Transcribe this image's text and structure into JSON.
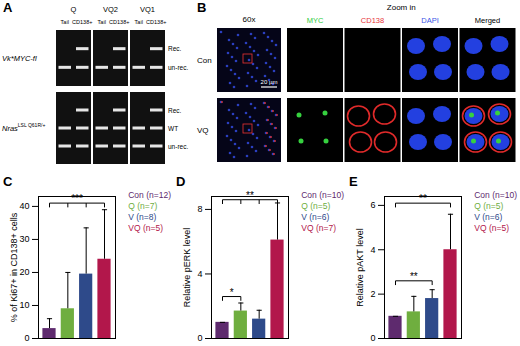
{
  "panel_A": {
    "label": "A",
    "groups": [
      "Q",
      "VQ2",
      "VQ1"
    ],
    "lanes": [
      "Tail",
      "CD138+"
    ],
    "rows": [
      {
        "name": "Vk*MYC-fl",
        "superscript": null,
        "bands": [
          "Rec.",
          "un-rec."
        ]
      },
      {
        "name": "Nras",
        "superscript": "LSL Q61R/+",
        "bands": [
          "Rec.",
          "WT",
          "un-rec."
        ]
      }
    ]
  },
  "panel_B": {
    "label": "B",
    "overview": "60x",
    "zoom": "Zoom in",
    "scale_bar": "20 µm",
    "channels": [
      "MYC",
      "CD138",
      "DAPI",
      "Merged"
    ],
    "channel_colors": [
      "#2ecc40",
      "#e8333a",
      "#3a57e8",
      "#000000"
    ],
    "rows": [
      "Con",
      "VQ"
    ]
  },
  "chart_data": [
    {
      "type": "bar",
      "panel": "C",
      "y_label": "% of Ki67+ in CD138+ cells",
      "categories": [
        "Con (n=12)",
        "Q (n=7)",
        "V (n=8)",
        "VQ (n=5)"
      ],
      "values": [
        3,
        9,
        19.5,
        24
      ],
      "errors": [
        3,
        11,
        14,
        15
      ],
      "colors": [
        "#5e2a6e",
        "#6fae3f",
        "#2e4a8a",
        "#b2174b"
      ],
      "ylim": [
        0,
        43
      ],
      "yticks": [
        0,
        10,
        20,
        30,
        40
      ],
      "tick_labels": "y",
      "significance": [
        {
          "from": [
            0
          ],
          "to": [
            1,
            2,
            3
          ],
          "y": 41,
          "label": "***"
        }
      ]
    },
    {
      "type": "bar",
      "panel": "D",
      "y_label": "Relative pERK level",
      "categories": [
        "Con (n=10)",
        "Q (n=5)",
        "V (n=6)",
        "VQ (n=7)"
      ],
      "values": [
        1,
        1.7,
        1.2,
        6.1
      ],
      "errors": [
        0,
        0.5,
        0.55,
        2.3
      ],
      "colors": [
        "#5e2a6e",
        "#6fae3f",
        "#2e4a8a",
        "#b2174b"
      ],
      "ylim": [
        0,
        8.8
      ],
      "yticks": [
        0,
        4,
        8
      ],
      "tick_labels": "y",
      "significance": [
        {
          "from": [
            0
          ],
          "to": [
            1
          ],
          "y": 2.6,
          "label": "*"
        },
        {
          "from": [
            0,
            1,
            2
          ],
          "to": [
            3
          ],
          "y": 8.6,
          "label": "**"
        }
      ]
    },
    {
      "type": "bar",
      "panel": "E",
      "y_label": "Relative pAKT level",
      "categories": [
        "Con (n=10)",
        "Q (n=5)",
        "V (n=6)",
        "VQ (n=5)"
      ],
      "values": [
        1,
        1.2,
        1.8,
        4
      ],
      "errors": [
        0,
        0.7,
        0.4,
        1.6
      ],
      "colors": [
        "#5e2a6e",
        "#6fae3f",
        "#2e4a8a",
        "#b2174b"
      ],
      "ylim": [
        0,
        6.4
      ],
      "yticks": [
        0,
        2,
        4,
        6
      ],
      "tick_labels": "y",
      "significance": [
        {
          "from": [
            0
          ],
          "to": [
            2
          ],
          "y": 2.6,
          "label": "**"
        },
        {
          "from": [
            0
          ],
          "to": [
            3
          ],
          "y": 6.1,
          "label": "**"
        }
      ]
    }
  ]
}
